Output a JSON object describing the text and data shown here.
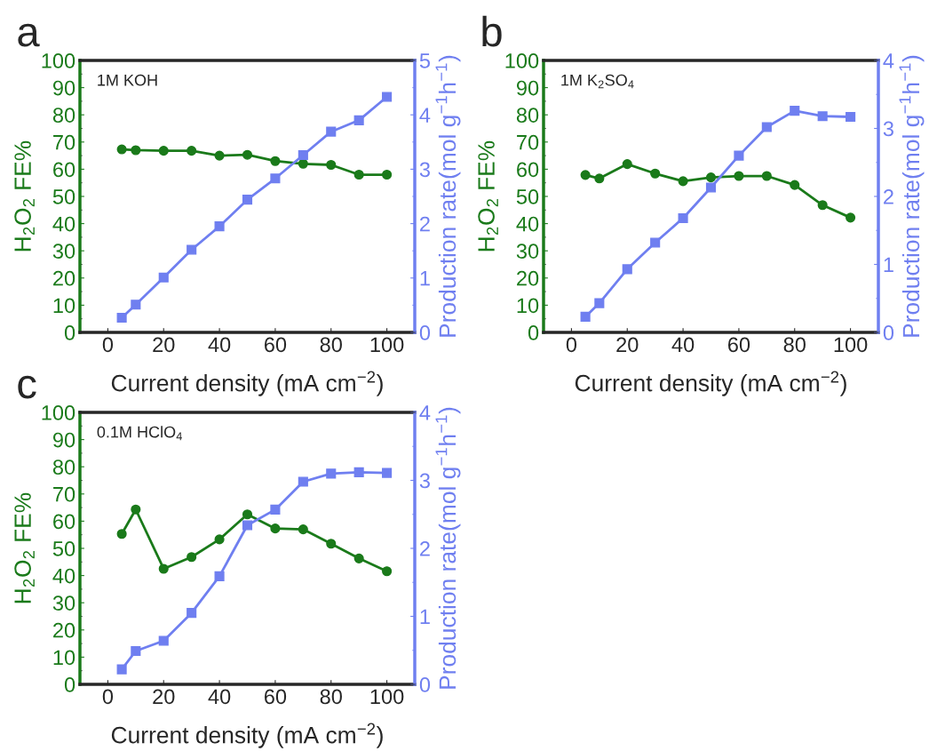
{
  "chart_data": [
    {
      "type": "line",
      "title": "a",
      "xlabel": "Current density (mA cm$^{−2}$)",
      "ylabel": "H$_{2}$O$_{2}$ FE%",
      "y2label": "Production rate(mol g$^{−1}$h$^{−1}$)",
      "annotations": [
        "1M KOH"
      ],
      "x": [
        5,
        10,
        20,
        30,
        40,
        50,
        60,
        70,
        80,
        90,
        100
      ],
      "xlim": [
        -10,
        110
      ],
      "xticks": [
        0,
        20,
        40,
        60,
        80,
        100
      ],
      "ylim": [
        0,
        100
      ],
      "yticks": [
        0,
        10,
        20,
        30,
        40,
        50,
        60,
        70,
        80,
        90,
        100
      ],
      "y2lim": [
        0,
        5
      ],
      "y2ticks": [
        0,
        1,
        2,
        3,
        4,
        5
      ],
      "grid": false,
      "legend": false,
      "series": [
        {
          "color": "#1a7a1a",
          "marker": "circle",
          "values": [
            67.3,
            67,
            66.8,
            66.8,
            65,
            65.3,
            63,
            62,
            61.6,
            58,
            58
          ]
        },
        {
          "color": "#6f7ff0",
          "marker": "square",
          "axis": "y2",
          "values": [
            0.27,
            0.51,
            1.01,
            1.52,
            1.95,
            2.44,
            2.83,
            3.26,
            3.69,
            3.9,
            4.33
          ]
        }
      ]
    },
    {
      "type": "line",
      "title": "b",
      "xlabel": "Current density (mA cm$^{−2}$)",
      "ylabel": "H$_{2}$O$_{2}$ FE%",
      "y2label": "Production rate(mol g$^{−1}$h$^{−1}$)",
      "annotations": [
        "1M K$_{2}$SO$_{4}$"
      ],
      "x": [
        5,
        10,
        20,
        30,
        40,
        50,
        60,
        70,
        80,
        90,
        100
      ],
      "xlim": [
        -10,
        110
      ],
      "xticks": [
        0,
        20,
        40,
        60,
        80,
        100
      ],
      "ylim": [
        0,
        100
      ],
      "yticks": [
        0,
        10,
        20,
        30,
        40,
        50,
        60,
        70,
        80,
        90,
        100
      ],
      "y2lim": [
        0,
        4
      ],
      "y2ticks": [
        0,
        1,
        2,
        3,
        4
      ],
      "grid": false,
      "legend": false,
      "series": [
        {
          "color": "#1a7a1a",
          "marker": "circle",
          "values": [
            57.9,
            56.6,
            61.9,
            58.4,
            55.6,
            57,
            57.5,
            57.5,
            54.2,
            46.8,
            42.2
          ]
        },
        {
          "color": "#6f7ff0",
          "marker": "square",
          "axis": "y2",
          "values": [
            0.23,
            0.43,
            0.93,
            1.32,
            1.68,
            2.13,
            2.6,
            3.02,
            3.26,
            3.18,
            3.17
          ]
        }
      ]
    },
    {
      "type": "line",
      "title": "c",
      "xlabel": "Current density (mA cm$^{−2}$)",
      "ylabel": "H$_{2}$O$_{2}$ FE%",
      "y2label": "Production rate(mol g$^{−1}$h$^{−1}$)",
      "annotations": [
        "0.1M HClO$_{4}$"
      ],
      "x": [
        5,
        10,
        20,
        30,
        40,
        50,
        60,
        70,
        80,
        90,
        100
      ],
      "xlim": [
        -10,
        110
      ],
      "xticks": [
        0,
        20,
        40,
        60,
        80,
        100
      ],
      "ylim": [
        0,
        100
      ],
      "yticks": [
        0,
        10,
        20,
        30,
        40,
        50,
        60,
        70,
        80,
        90,
        100
      ],
      "y2lim": [
        0,
        4
      ],
      "y2ticks": [
        0,
        1,
        2,
        3,
        4
      ],
      "grid": false,
      "legend": false,
      "series": [
        {
          "color": "#1a7a1a",
          "marker": "circle",
          "values": [
            55.3,
            64.3,
            42.5,
            46.8,
            53.3,
            62.5,
            57.3,
            57,
            51.7,
            46.3,
            41.6
          ]
        },
        {
          "color": "#6f7ff0",
          "marker": "square",
          "axis": "y2",
          "values": [
            0.22,
            0.49,
            0.64,
            1.05,
            1.59,
            2.34,
            2.57,
            2.98,
            3.1,
            3.12,
            3.11
          ]
        }
      ]
    }
  ]
}
